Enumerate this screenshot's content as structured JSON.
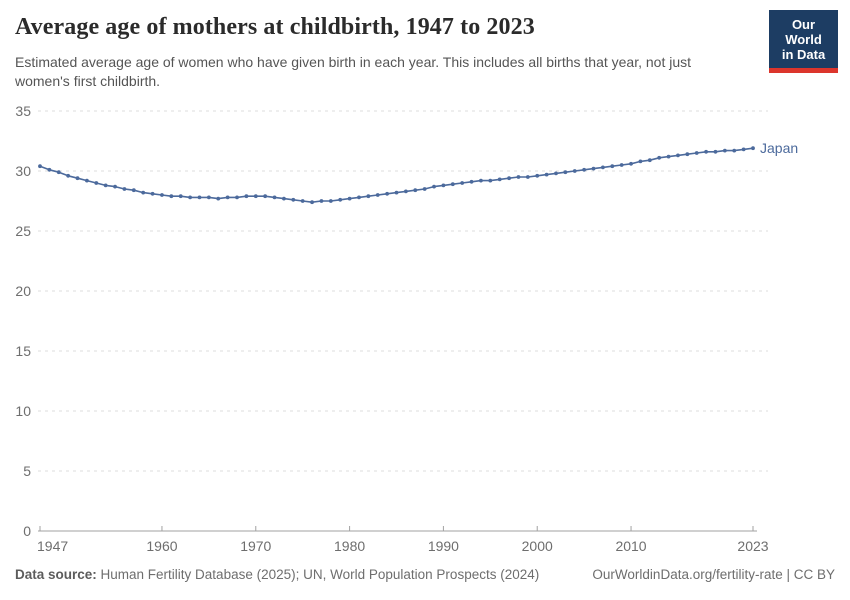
{
  "header": {
    "title": "Average age of mothers at childbirth, 1947 to 2023",
    "subtitle": "Estimated average age of women who have given birth in each year. This includes all births that year, not just women's first childbirth."
  },
  "logo": {
    "line1": "Our World",
    "line2": "in Data",
    "bg_color": "#1d3d63",
    "accent_color": "#dc352c"
  },
  "chart_data": {
    "type": "line",
    "title": "Average age of mothers at childbirth, 1947 to 2023",
    "xlabel": "",
    "ylabel": "",
    "xlim": [
      1947,
      2023
    ],
    "ylim": [
      0,
      35
    ],
    "xticks": [
      1947,
      1960,
      1970,
      1980,
      1990,
      2000,
      2010,
      2023
    ],
    "yticks": [
      0,
      5,
      10,
      15,
      20,
      25,
      30,
      35
    ],
    "grid": "horizontal-dashed",
    "legend_position": "end-of-line-label",
    "colors": {
      "line": "#4c6a9c",
      "grid": "#dedede",
      "axis": "#a1a1a1",
      "tick_text": "#6e6e6e"
    },
    "series": [
      {
        "name": "Japan",
        "color": "#4c6a9c",
        "x": [
          1947,
          1948,
          1949,
          1950,
          1951,
          1952,
          1953,
          1954,
          1955,
          1956,
          1957,
          1958,
          1959,
          1960,
          1961,
          1962,
          1963,
          1964,
          1965,
          1966,
          1967,
          1968,
          1969,
          1970,
          1971,
          1972,
          1973,
          1974,
          1975,
          1976,
          1977,
          1978,
          1979,
          1980,
          1981,
          1982,
          1983,
          1984,
          1985,
          1986,
          1987,
          1988,
          1989,
          1990,
          1991,
          1992,
          1993,
          1994,
          1995,
          1996,
          1997,
          1998,
          1999,
          2000,
          2001,
          2002,
          2003,
          2004,
          2005,
          2006,
          2007,
          2008,
          2009,
          2010,
          2011,
          2012,
          2013,
          2014,
          2015,
          2016,
          2017,
          2018,
          2019,
          2020,
          2021,
          2022,
          2023
        ],
        "values": [
          30.4,
          30.1,
          29.9,
          29.6,
          29.4,
          29.2,
          29.0,
          28.8,
          28.7,
          28.5,
          28.4,
          28.2,
          28.1,
          28.0,
          27.9,
          27.9,
          27.8,
          27.8,
          27.8,
          27.7,
          27.8,
          27.8,
          27.9,
          27.9,
          27.9,
          27.8,
          27.7,
          27.6,
          27.5,
          27.4,
          27.5,
          27.5,
          27.6,
          27.7,
          27.8,
          27.9,
          28.0,
          28.1,
          28.2,
          28.3,
          28.4,
          28.5,
          28.7,
          28.8,
          28.9,
          29.0,
          29.1,
          29.2,
          29.2,
          29.3,
          29.4,
          29.5,
          29.5,
          29.6,
          29.7,
          29.8,
          29.9,
          30.0,
          30.1,
          30.2,
          30.3,
          30.4,
          30.5,
          30.6,
          30.8,
          30.9,
          31.1,
          31.2,
          31.3,
          31.4,
          31.5,
          31.6,
          31.6,
          31.7,
          31.7,
          31.8,
          31.9
        ]
      }
    ]
  },
  "footer": {
    "source_label": "Data source:",
    "source_text": " Human Fertility Database (2025); UN, World Population Prospects (2024)",
    "credit": "OurWorldinData.org/fertility-rate | CC BY"
  }
}
